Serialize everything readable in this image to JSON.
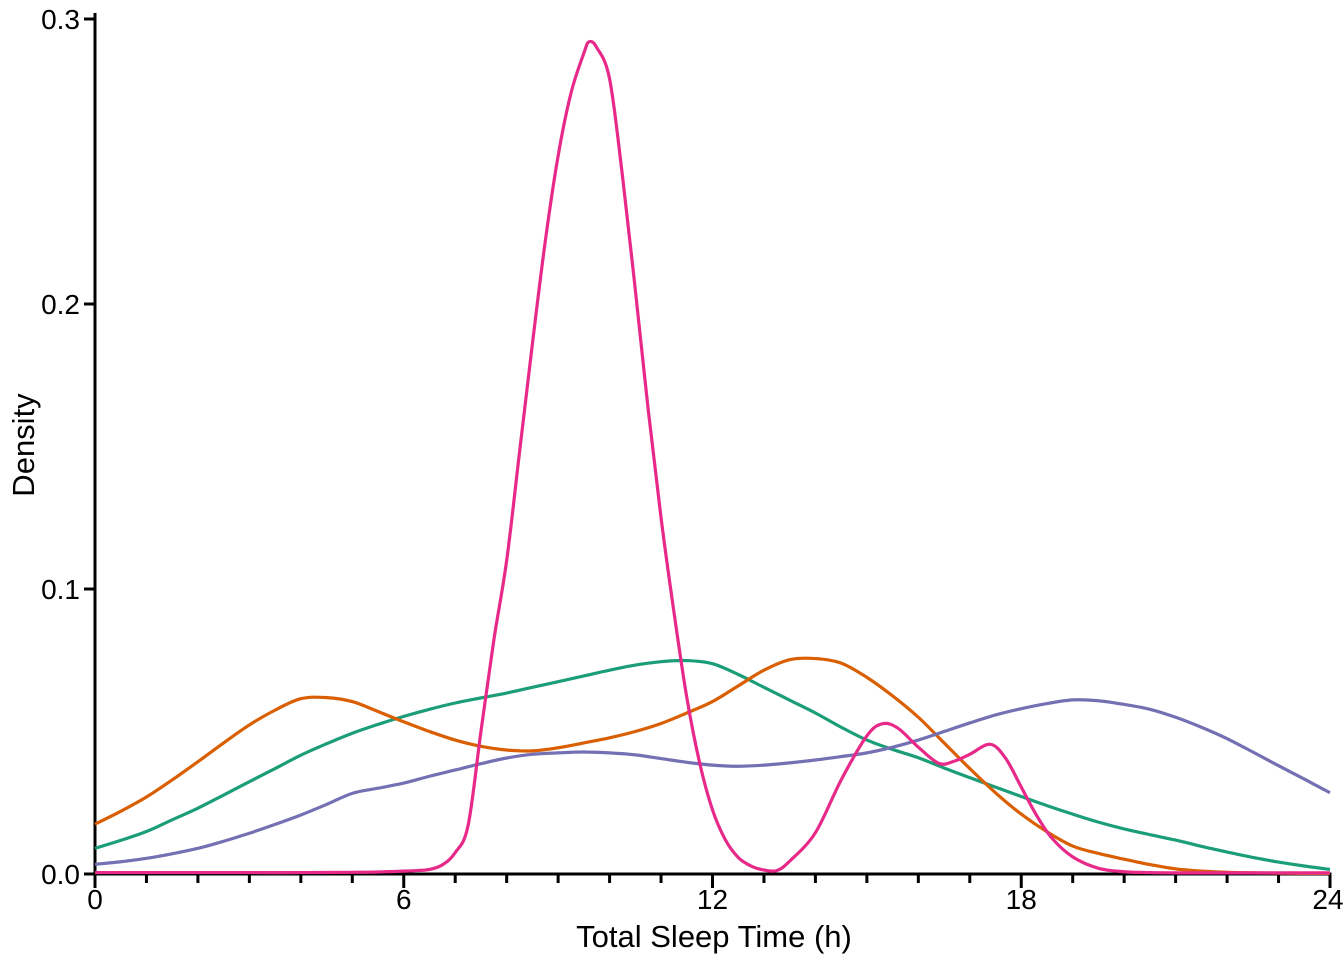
{
  "chart_data": {
    "type": "line",
    "title": "",
    "xlabel": "Total Sleep Time (h)",
    "ylabel": "Density",
    "xlim": [
      0,
      24
    ],
    "ylim": [
      0,
      0.3
    ],
    "x_major_ticks": [
      0,
      6,
      12,
      18,
      24
    ],
    "x_major_tick_labels": [
      "0",
      "6",
      "12",
      "18",
      "24"
    ],
    "x_minor_tick_step": 1,
    "y_ticks": [
      0,
      0.1,
      0.2,
      0.3
    ],
    "y_tick_labels": [
      "0.0",
      "0.1",
      "0.2",
      "0.3"
    ],
    "grid": false,
    "legend": "none",
    "background_color": "#ffffff",
    "axis_color": "#000000",
    "line_width": 3.2,
    "series": [
      {
        "name": "green-curve",
        "color": "#1B9E77",
        "x": [
          0,
          0.5,
          1,
          1.5,
          2,
          2.5,
          3,
          3.5,
          4,
          4.5,
          5,
          5.5,
          6,
          6.5,
          7,
          7.5,
          8,
          8.5,
          9,
          9.5,
          10,
          10.5,
          11,
          11.5,
          12,
          12.5,
          13,
          13.5,
          14,
          14.5,
          15,
          15.5,
          16,
          16.5,
          17,
          17.5,
          18,
          18.5,
          19,
          19.5,
          20,
          20.5,
          21,
          21.5,
          22,
          22.5,
          23,
          23.5,
          24
        ],
        "y": [
          0.009,
          0.0118,
          0.0149,
          0.019,
          0.0231,
          0.0277,
          0.0324,
          0.037,
          0.0417,
          0.0457,
          0.0494,
          0.0525,
          0.0553,
          0.0578,
          0.06,
          0.0618,
          0.0635,
          0.0655,
          0.0675,
          0.0695,
          0.0715,
          0.0733,
          0.0745,
          0.0749,
          0.0738,
          0.07,
          0.0655,
          0.061,
          0.0565,
          0.0515,
          0.047,
          0.0437,
          0.0408,
          0.0372,
          0.0338,
          0.0305,
          0.0272,
          0.024,
          0.021,
          0.0182,
          0.0158,
          0.0138,
          0.0119,
          0.0097,
          0.0077,
          0.0058,
          0.0042,
          0.0028,
          0.0016
        ]
      },
      {
        "name": "orange-curve",
        "color": "#D95F02",
        "x": [
          0,
          0.5,
          1,
          1.5,
          2,
          2.5,
          3,
          3.5,
          4,
          4.5,
          5,
          5.5,
          6,
          6.5,
          7,
          7.5,
          8,
          8.5,
          9,
          9.5,
          10,
          10.5,
          11,
          11.5,
          12,
          12.5,
          13,
          13.5,
          14,
          14.5,
          15,
          15.5,
          16,
          16.5,
          17,
          17.5,
          18,
          18.5,
          19,
          19.5,
          20,
          20.5,
          21,
          21.5,
          22,
          22.5,
          23,
          23.5,
          24
        ],
        "y": [
          0.0175,
          0.022,
          0.027,
          0.033,
          0.0394,
          0.046,
          0.0523,
          0.0575,
          0.0615,
          0.0619,
          0.0605,
          0.057,
          0.0534,
          0.05,
          0.047,
          0.0448,
          0.0435,
          0.0432,
          0.0443,
          0.046,
          0.0478,
          0.05,
          0.0528,
          0.0565,
          0.0605,
          0.066,
          0.0715,
          0.0752,
          0.0756,
          0.074,
          0.069,
          0.0625,
          0.055,
          0.046,
          0.037,
          0.0285,
          0.021,
          0.0148,
          0.0098,
          0.0072,
          0.0052,
          0.0033,
          0.0018,
          0.001,
          0.0006,
          0.0004,
          0.0003,
          0.0002,
          0.0002
        ]
      },
      {
        "name": "purple-curve",
        "color": "#7570B3",
        "x": [
          0,
          0.5,
          1,
          1.5,
          2,
          2.5,
          3,
          3.5,
          4,
          4.5,
          5,
          5.5,
          6,
          6.5,
          7,
          7.5,
          8,
          8.5,
          9,
          9.5,
          10,
          10.5,
          11,
          11.5,
          12,
          12.5,
          13,
          13.5,
          14,
          14.5,
          15,
          15.5,
          16,
          16.5,
          17,
          17.5,
          18,
          18.5,
          19,
          19.5,
          20,
          20.5,
          21,
          21.5,
          22,
          22.5,
          23,
          23.5,
          24
        ],
        "y": [
          0.0034,
          0.0043,
          0.0055,
          0.0071,
          0.009,
          0.0115,
          0.0143,
          0.0174,
          0.0207,
          0.0244,
          0.0283,
          0.0301,
          0.0319,
          0.0343,
          0.0365,
          0.0387,
          0.0407,
          0.042,
          0.0425,
          0.0428,
          0.0425,
          0.0418,
          0.0405,
          0.0392,
          0.0382,
          0.0378,
          0.0382,
          0.039,
          0.04,
          0.0412,
          0.0425,
          0.0445,
          0.047,
          0.05,
          0.053,
          0.0558,
          0.058,
          0.0598,
          0.0611,
          0.0608,
          0.0595,
          0.0578,
          0.055,
          0.0515,
          0.0475,
          0.0428,
          0.038,
          0.0333,
          0.0285
        ]
      },
      {
        "name": "pink-curve",
        "color": "#E7298A",
        "x": [
          0,
          1,
          2,
          3,
          4,
          5,
          5.5,
          6,
          6.25,
          6.5,
          6.75,
          7,
          7.25,
          7.5,
          7.75,
          8,
          8.25,
          8.5,
          8.75,
          9,
          9.25,
          9.5,
          9.6,
          9.75,
          10,
          10.25,
          10.5,
          10.75,
          11,
          11.25,
          11.5,
          11.75,
          12,
          12.25,
          12.5,
          12.75,
          13,
          13.25,
          13.5,
          14,
          14.5,
          15,
          15.3,
          15.6,
          16,
          16.4,
          16.7,
          17,
          17.4,
          17.7,
          18,
          18.3,
          18.6,
          19,
          19.5,
          20,
          20.5,
          21,
          22,
          23,
          24
        ],
        "y": [
          0.0005,
          0.0005,
          0.0005,
          0.0005,
          0.0005,
          0.0006,
          0.0007,
          0.001,
          0.0012,
          0.0016,
          0.0032,
          0.0075,
          0.017,
          0.05,
          0.082,
          0.11,
          0.148,
          0.186,
          0.222,
          0.252,
          0.274,
          0.288,
          0.292,
          0.29,
          0.279,
          0.245,
          0.205,
          0.163,
          0.125,
          0.092,
          0.062,
          0.039,
          0.0225,
          0.012,
          0.0058,
          0.0028,
          0.0014,
          0.0012,
          0.0045,
          0.0145,
          0.033,
          0.0485,
          0.0527,
          0.0512,
          0.0445,
          0.0388,
          0.0396,
          0.042,
          0.0455,
          0.0405,
          0.0305,
          0.0205,
          0.0125,
          0.006,
          0.002,
          0.0008,
          0.0005,
          0.0004,
          0.0004,
          0.0004,
          0.0004
        ]
      }
    ]
  }
}
